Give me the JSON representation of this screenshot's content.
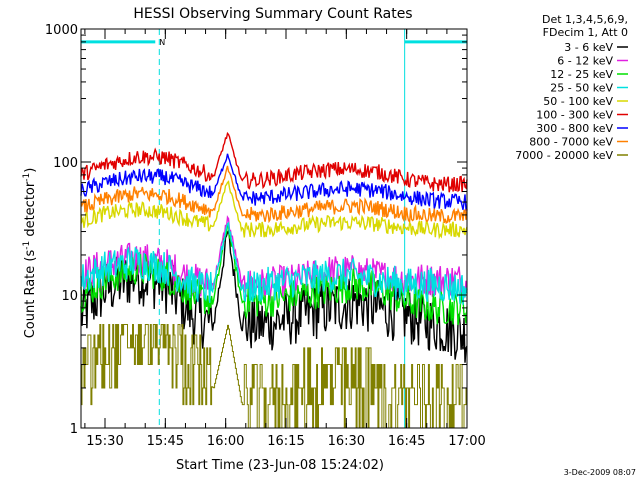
{
  "chart_data": {
    "type": "line",
    "title": "HESSI Observing Summary Count Rates",
    "xlabel": "Start Time (23-Jun-08 15:24:02)",
    "ylabel_main": "Count Rate (s",
    "ylabel_sup1": "-1",
    "ylabel_mid": " detector",
    "ylabel_sup2": "-1",
    "ylabel_end": ")",
    "yscale": "log",
    "ylim": [
      1,
      1000
    ],
    "xlim": [
      "15:24:02",
      "17:00:00"
    ],
    "x_ticks": [
      "15:30",
      "15:45",
      "16:00",
      "16:15",
      "16:30",
      "16:45",
      "17:00"
    ],
    "y_ticks": [
      "1",
      "10",
      "100",
      "1000"
    ],
    "footer_date": "3-Dec-2009 08:07",
    "legend_header": [
      "Det 1,3,4,5,6,9,",
      "FDecim 1, Att 0"
    ],
    "colors": {
      "frame": "#000000",
      "mode_marker": "#00e0e0",
      "3-6": "#000000",
      "6-12": "#e020e0",
      "12-25": "#00e000",
      "25-50": "#00e0e0",
      "50-100": "#d8d800",
      "100-300": "#e00000",
      "300-800": "#0000ff",
      "800-7000": "#ff8000",
      "7000-20000": "#808000"
    },
    "mode_flag_label": "N",
    "mode_markers": {
      "vertical_lines_dashed": [
        "15:24:02",
        "15:43:30",
        "16:44:30",
        "17:00:00"
      ],
      "vertical_lines_solid": [
        "15:24:02",
        "16:44:30"
      ],
      "top_bars": [
        [
          "15:24:02",
          "15:42:30"
        ],
        [
          "16:44:30",
          "17:00:00"
        ]
      ],
      "top_bar_level": 800
    },
    "flare_peak_time": "16:00:30",
    "series": [
      {
        "name": "3 - 6 keV",
        "color": "#000000",
        "values": [
          7,
          11,
          14,
          12,
          7,
          6,
          30,
          6,
          6,
          7,
          8,
          9,
          8,
          7,
          6,
          5
        ]
      },
      {
        "name": "6 - 12 keV",
        "color": "#e020e0",
        "values": [
          14,
          17,
          19,
          17,
          13,
          12,
          38,
          12,
          12,
          13,
          15,
          15,
          14,
          13,
          13,
          13
        ]
      },
      {
        "name": "12 - 25 keV",
        "color": "#00e000",
        "values": [
          10,
          13,
          16,
          14,
          10,
          9,
          35,
          9,
          9,
          10,
          11,
          12,
          11,
          9,
          8,
          8
        ]
      },
      {
        "name": "25 - 50 keV",
        "color": "#00e0e0",
        "values": [
          13,
          16,
          18,
          16,
          12,
          11,
          36,
          11,
          12,
          13,
          14,
          14,
          13,
          12,
          12,
          11
        ]
      },
      {
        "name": "50 - 100 keV",
        "color": "#d8d800",
        "values": [
          36,
          41,
          44,
          42,
          36,
          33,
          72,
          31,
          31,
          33,
          35,
          35,
          34,
          32,
          31,
          31
        ]
      },
      {
        "name": "100 - 300 keV",
        "color": "#e00000",
        "values": [
          80,
          95,
          110,
          108,
          90,
          78,
          165,
          72,
          74,
          82,
          88,
          88,
          84,
          74,
          68,
          68
        ]
      },
      {
        "name": "300 - 800 keV",
        "color": "#0000ff",
        "values": [
          60,
          70,
          78,
          77,
          65,
          58,
          115,
          53,
          54,
          58,
          62,
          63,
          61,
          55,
          51,
          50
        ]
      },
      {
        "name": "800 - 7000 keV",
        "color": "#ff8000",
        "values": [
          45,
          52,
          58,
          56,
          48,
          43,
          92,
          40,
          40,
          43,
          46,
          47,
          45,
          41,
          39,
          39
        ]
      },
      {
        "name": "7000 - 20000 keV",
        "color": "#808000",
        "values": [
          2,
          3.5,
          4.5,
          4,
          2.5,
          2,
          6,
          1.5,
          1.5,
          1.8,
          2,
          2,
          1.8,
          1.5,
          1.4,
          1.5
        ]
      }
    ],
    "series_times": [
      "15:24",
      "15:30",
      "15:38",
      "15:45",
      "15:52",
      "15:57",
      "16:00:30",
      "16:04",
      "16:10",
      "16:18",
      "16:26",
      "16:32",
      "16:38",
      "16:45",
      "16:52",
      "17:00"
    ]
  }
}
